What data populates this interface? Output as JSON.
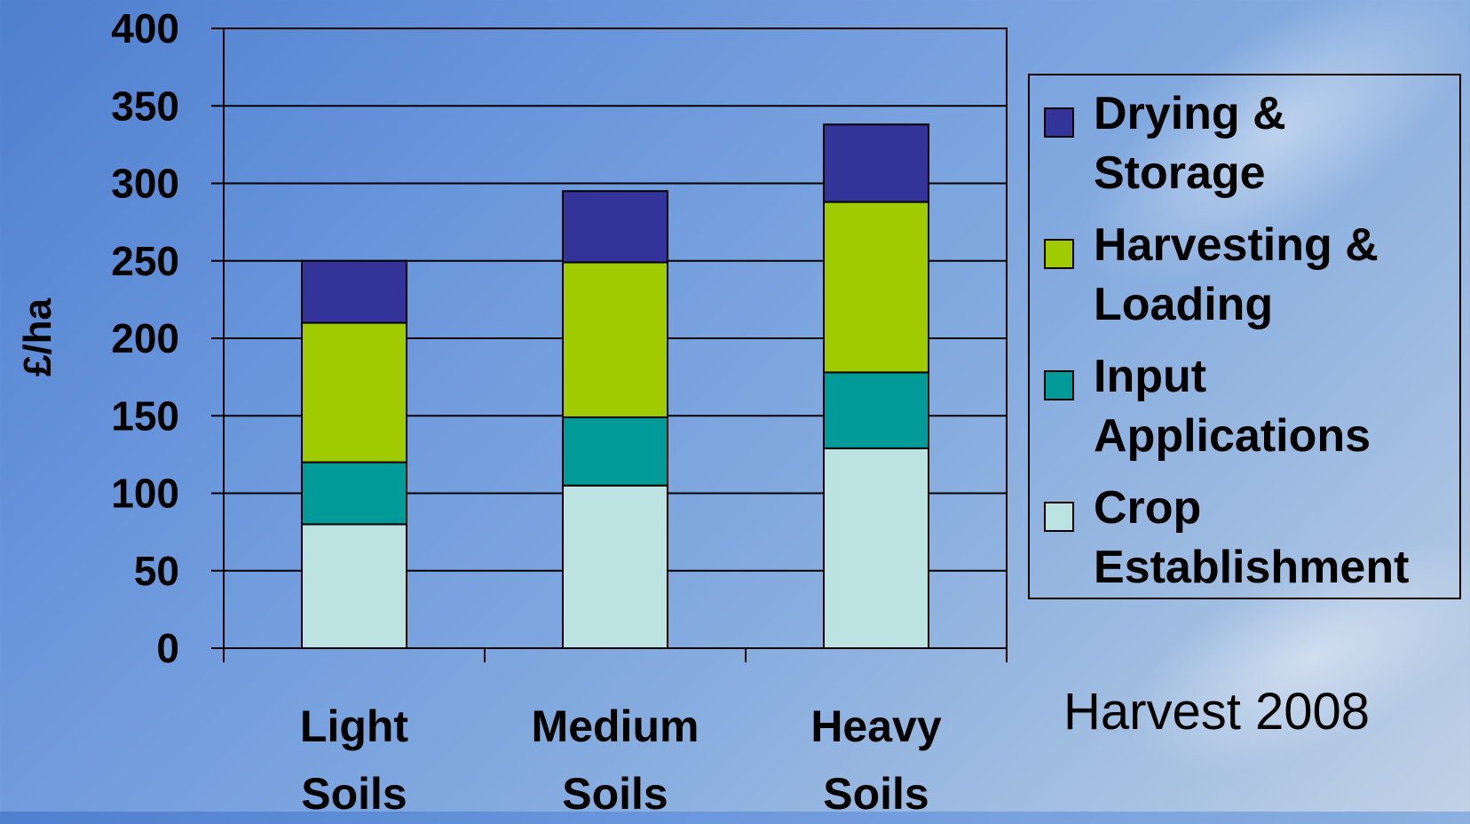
{
  "chart_data": {
    "type": "bar",
    "stacked": true,
    "categories": [
      "Light Soils",
      "Medium Soils",
      "Heavy Soils"
    ],
    "category_lines": [
      [
        "Light",
        "Soils"
      ],
      [
        "Medium",
        "Soils"
      ],
      [
        "Heavy",
        "Soils"
      ]
    ],
    "series": [
      {
        "name": "Crop Establishment",
        "lines": [
          "Crop",
          "Establishment"
        ],
        "color": "#bde2e2",
        "values": [
          80,
          105,
          129
        ]
      },
      {
        "name": "Input Applications",
        "lines": [
          "Input",
          "Applications"
        ],
        "color": "#009a98",
        "values": [
          40,
          44,
          49
        ]
      },
      {
        "name": "Harvesting & Loading",
        "lines": [
          "Harvesting &",
          "Loading"
        ],
        "color": "#9fcb00",
        "values": [
          90,
          100,
          110
        ]
      },
      {
        "name": "Drying & Storage",
        "lines": [
          "Drying &",
          "Storage"
        ],
        "color": "#333399",
        "values": [
          40,
          46,
          50
        ]
      }
    ],
    "ylabel": "£/ha",
    "ylim": [
      0,
      400
    ],
    "yticks": [
      0,
      50,
      100,
      150,
      200,
      250,
      300,
      350,
      400
    ],
    "grid": true,
    "legend_position": "right"
  },
  "caption": "Harvest 2008"
}
